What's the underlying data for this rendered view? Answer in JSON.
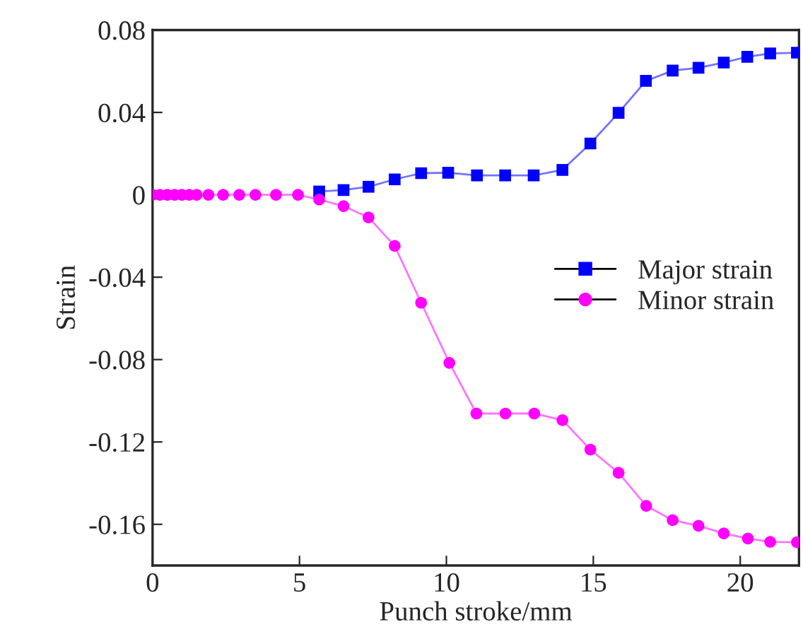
{
  "chart_data": {
    "type": "line",
    "xlabel": "Punch stroke/mm",
    "ylabel": "Strain",
    "xlim": [
      0,
      22
    ],
    "xticks": [
      0,
      5,
      10,
      15,
      20
    ],
    "ylim": [
      -0.18,
      0.08
    ],
    "yticks": [
      -0.16,
      -0.12,
      -0.08,
      -0.04,
      0,
      0.04,
      0.08
    ],
    "grid": false,
    "legend": "right",
    "series": [
      {
        "name": "Major strain",
        "color": "#0000ff",
        "marker": "square",
        "x": [
          5.67,
          6.5,
          7.35,
          8.24,
          9.14,
          10.06,
          11.04,
          12.0,
          12.97,
          13.95,
          14.9,
          15.86,
          16.79,
          17.7,
          18.58,
          19.44,
          20.24,
          21.02,
          21.93
        ],
        "values": [
          0.0016,
          0.0023,
          0.0039,
          0.0075,
          0.0105,
          0.0107,
          0.0094,
          0.0094,
          0.0094,
          0.0121,
          0.0249,
          0.0398,
          0.0553,
          0.0603,
          0.0617,
          0.0642,
          0.067,
          0.0686,
          0.069
        ]
      },
      {
        "name": "Minor strain",
        "color": "#ff00ff",
        "marker": "circle",
        "x": [
          0,
          0.25,
          0.5,
          0.75,
          1.0,
          1.25,
          1.5,
          1.9,
          2.4,
          2.95,
          3.5,
          4.2,
          4.95,
          5.67,
          6.5,
          7.35,
          8.24,
          9.14,
          10.1,
          11.02,
          12.01,
          12.99,
          13.95,
          14.9,
          15.86,
          16.8,
          17.7,
          18.58,
          19.44,
          20.26,
          21.02,
          21.93
        ],
        "values": [
          0,
          0,
          0,
          0,
          0,
          0,
          0,
          0,
          0,
          0,
          0,
          0,
          0,
          -0.0023,
          -0.0055,
          -0.011,
          -0.0248,
          -0.0524,
          -0.0816,
          -0.1062,
          -0.1062,
          -0.1062,
          -0.1094,
          -0.1237,
          -0.135,
          -0.151,
          -0.158,
          -0.1607,
          -0.1644,
          -0.1669,
          -0.1685,
          -0.1687
        ]
      }
    ]
  }
}
